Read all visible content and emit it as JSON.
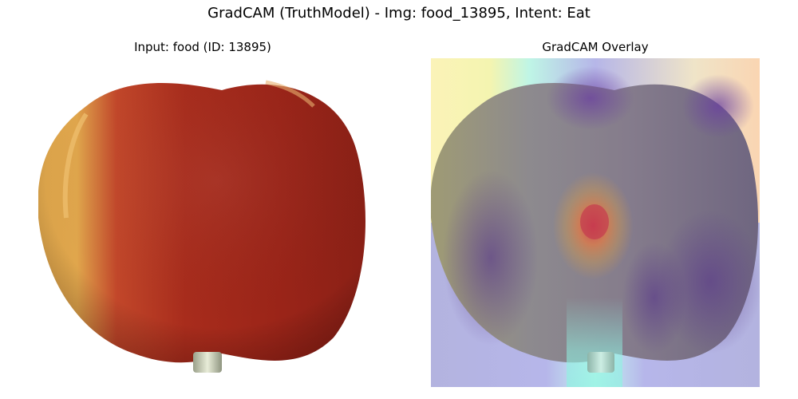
{
  "figure": {
    "suptitle": "GradCAM (TruthModel) - Img: food_13895, Intent: Eat"
  },
  "panels": [
    {
      "title": "Input: food (ID: 13895)"
    },
    {
      "title": "GradCAM Overlay"
    }
  ]
}
